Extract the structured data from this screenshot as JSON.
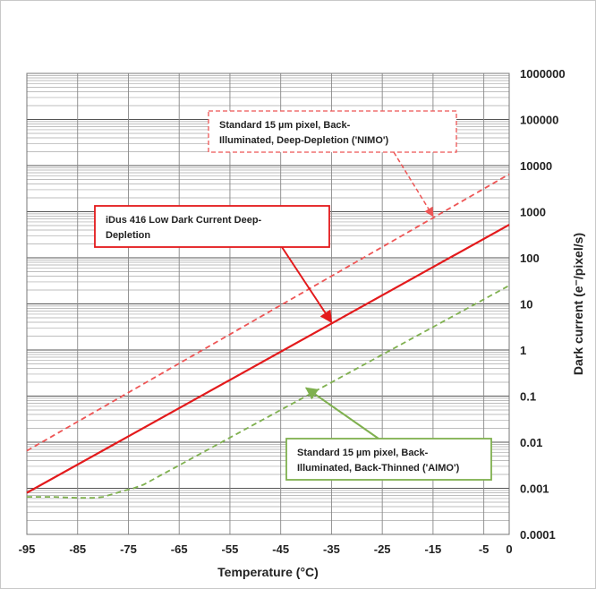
{
  "chart_data": {
    "type": "line",
    "title": "",
    "xlabel": "Temperature (°C)",
    "ylabel": "Dark current (e⁻/pixel/s)",
    "xlim": [
      -95,
      0
    ],
    "ylim": [
      0.0001,
      1000000
    ],
    "y_scale": "log",
    "grid": true,
    "x_ticks": [
      "-95",
      "-85",
      "-75",
      "-65",
      "-55",
      "-45",
      "-35",
      "-25",
      "-15",
      "-5",
      "0"
    ],
    "y_ticks": [
      "0.0001",
      "0.001",
      "0.01",
      "0.1",
      "1",
      "10",
      "100",
      "1000",
      "10000",
      "100000",
      "1000000"
    ],
    "series": [
      {
        "name": "Standard 15 µm pixel, Back-Illuminated, Deep-Depletion ('NIMO')",
        "color": "#ee5555",
        "dash": "dashed",
        "x": [
          -95,
          0
        ],
        "y": [
          0.0065,
          6500
        ]
      },
      {
        "name": "iDus 416 Low Dark Current Deep-Depletion",
        "color": "#e31a1c",
        "dash": "solid",
        "x": [
          -95,
          0
        ],
        "y": [
          0.0008,
          520
        ]
      },
      {
        "name": "Standard 15 µm pixel, Back-Illuminated, Back-Thinned ('AIMO')",
        "color": "#7fb04f",
        "dash": "dashed",
        "x": [
          -95,
          -90,
          -85,
          -82,
          -80,
          -78,
          -76,
          -74,
          -72,
          0
        ],
        "y": [
          0.00065,
          0.00065,
          0.00062,
          0.00062,
          0.00065,
          0.00075,
          0.00088,
          0.001,
          0.0012,
          25
        ]
      }
    ],
    "annotations": [
      {
        "lines": [
          "Standard 15 µm pixel, Back-",
          "Illuminated, Deep-Depletion ('NIMO')"
        ],
        "border": "#ee5555",
        "dashed": true,
        "target": [
          -15,
          800
        ]
      },
      {
        "lines": [
          "iDus 416 Low Dark Current Deep-",
          "Depletion"
        ],
        "border": "#e31a1c",
        "dashed": false,
        "target": [
          -35,
          4
        ]
      },
      {
        "lines": [
          "Standard 15 µm pixel, Back-",
          "Illuminated, Back-Thinned ('AIMO')"
        ],
        "border": "#7fb04f",
        "dashed": false,
        "target": [
          -40,
          0.15
        ]
      }
    ]
  }
}
